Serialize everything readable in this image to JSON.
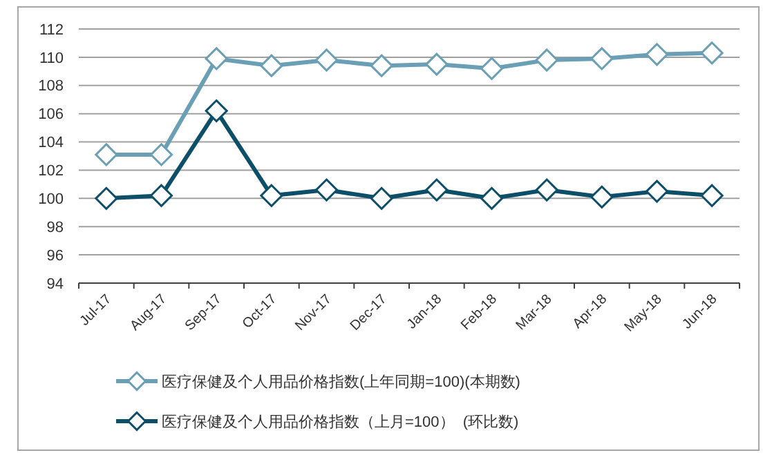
{
  "chart_data": {
    "type": "line",
    "categories": [
      "Jul-17",
      "Aug-17",
      "Sep-17",
      "Oct-17",
      "Nov-17",
      "Dec-17",
      "Jan-18",
      "Feb-18",
      "Mar-18",
      "Apr-18",
      "May-18",
      "Jun-18"
    ],
    "series": [
      {
        "name": "医疗保健及个人用品价格指数(上年同期=100)(本期数)",
        "color": "#6a9fb5",
        "values": [
          103.1,
          103.1,
          109.9,
          109.4,
          109.8,
          109.4,
          109.5,
          109.2,
          109.8,
          109.9,
          110.2,
          110.3
        ]
      },
      {
        "name": "医疗保健及个人用品价格指数（上月=100）  (环比数)",
        "color": "#0d4f69",
        "values": [
          100.0,
          100.2,
          106.2,
          100.2,
          100.6,
          100.0,
          100.6,
          100.0,
          100.6,
          100.1,
          100.5,
          100.2
        ]
      }
    ],
    "ylim": [
      94,
      112
    ],
    "yticks": [
      94,
      96,
      98,
      100,
      102,
      104,
      106,
      108,
      110,
      112
    ],
    "grid": "y",
    "legend": "bottom",
    "marker": "diamond",
    "line_style": "solid"
  }
}
